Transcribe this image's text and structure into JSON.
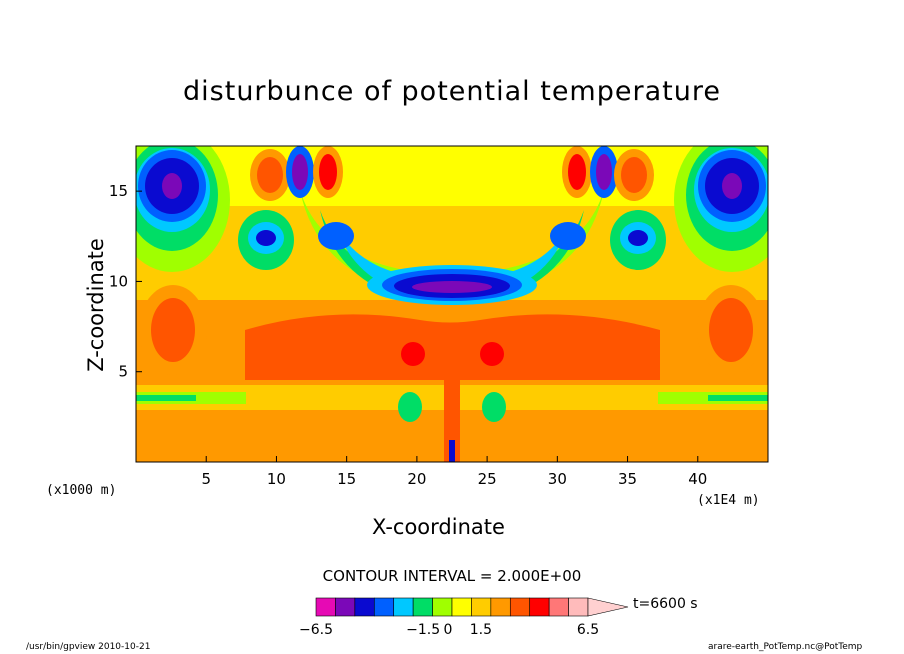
{
  "chart_data": {
    "type": "heatmap",
    "title": "disturbunce of potential temperature",
    "xlabel": "X-coordinate",
    "ylabel": "Z-coordinate",
    "x_unit_left": "(x1000 m)",
    "x_unit_right": "(x1E4 m)",
    "xticks": [
      "5",
      "10",
      "15",
      "20",
      "25",
      "30",
      "35",
      "40"
    ],
    "yticks": [
      "5",
      "10",
      "15"
    ],
    "xlim": [
      0,
      45
    ],
    "ylim": [
      0,
      17.5
    ],
    "contour_interval": "CONTOUR INTERVAL = 2.000E+00",
    "time_label": "t=6600 s",
    "colorbar": {
      "labels": [
        "−6.5",
        "−1.5",
        "0",
        "1.5",
        "6.5"
      ],
      "colors": [
        "#e60ab4",
        "#7b08b8",
        "#0a0ad0",
        "#0060ff",
        "#00c8ff",
        "#00dd66",
        "#a0ff00",
        "#ffff00",
        "#ffcc00",
        "#ff9900",
        "#ff5500",
        "#ff0000",
        "#ff7777",
        "#ffbbbb"
      ]
    },
    "features": [
      {
        "kind": "cold core",
        "x": 2.5,
        "z": 15.5,
        "value": -6.5
      },
      {
        "kind": "cold core",
        "x": 42.5,
        "z": 15.5,
        "value": -6.5
      },
      {
        "kind": "cold core",
        "x": 12,
        "z": 16,
        "value": -5
      },
      {
        "kind": "cold core",
        "x": 33,
        "z": 16,
        "value": -5
      },
      {
        "kind": "cold band",
        "x": 22.5,
        "z": 10,
        "value": -3
      },
      {
        "kind": "warm core",
        "x": 10,
        "z": 16,
        "value": 4
      },
      {
        "kind": "warm core",
        "x": 13.5,
        "z": 16,
        "value": 4
      },
      {
        "kind": "warm core",
        "x": 31.5,
        "z": 16,
        "value": 4
      },
      {
        "kind": "warm core",
        "x": 35,
        "z": 16,
        "value": 4
      },
      {
        "kind": "warm core",
        "x": 19.5,
        "z": 6,
        "value": 3
      },
      {
        "kind": "warm core",
        "x": 25.5,
        "z": 6,
        "value": 3
      },
      {
        "kind": "warm core",
        "x": 2.5,
        "z": 7,
        "value": 1.5
      },
      {
        "kind": "warm core",
        "x": 42.5,
        "z": 7,
        "value": 1.5
      }
    ]
  },
  "footer": {
    "left": "/usr/bin/gpview   2010-10-21",
    "right": "arare-earth_PotTemp.nc@PotTemp"
  }
}
